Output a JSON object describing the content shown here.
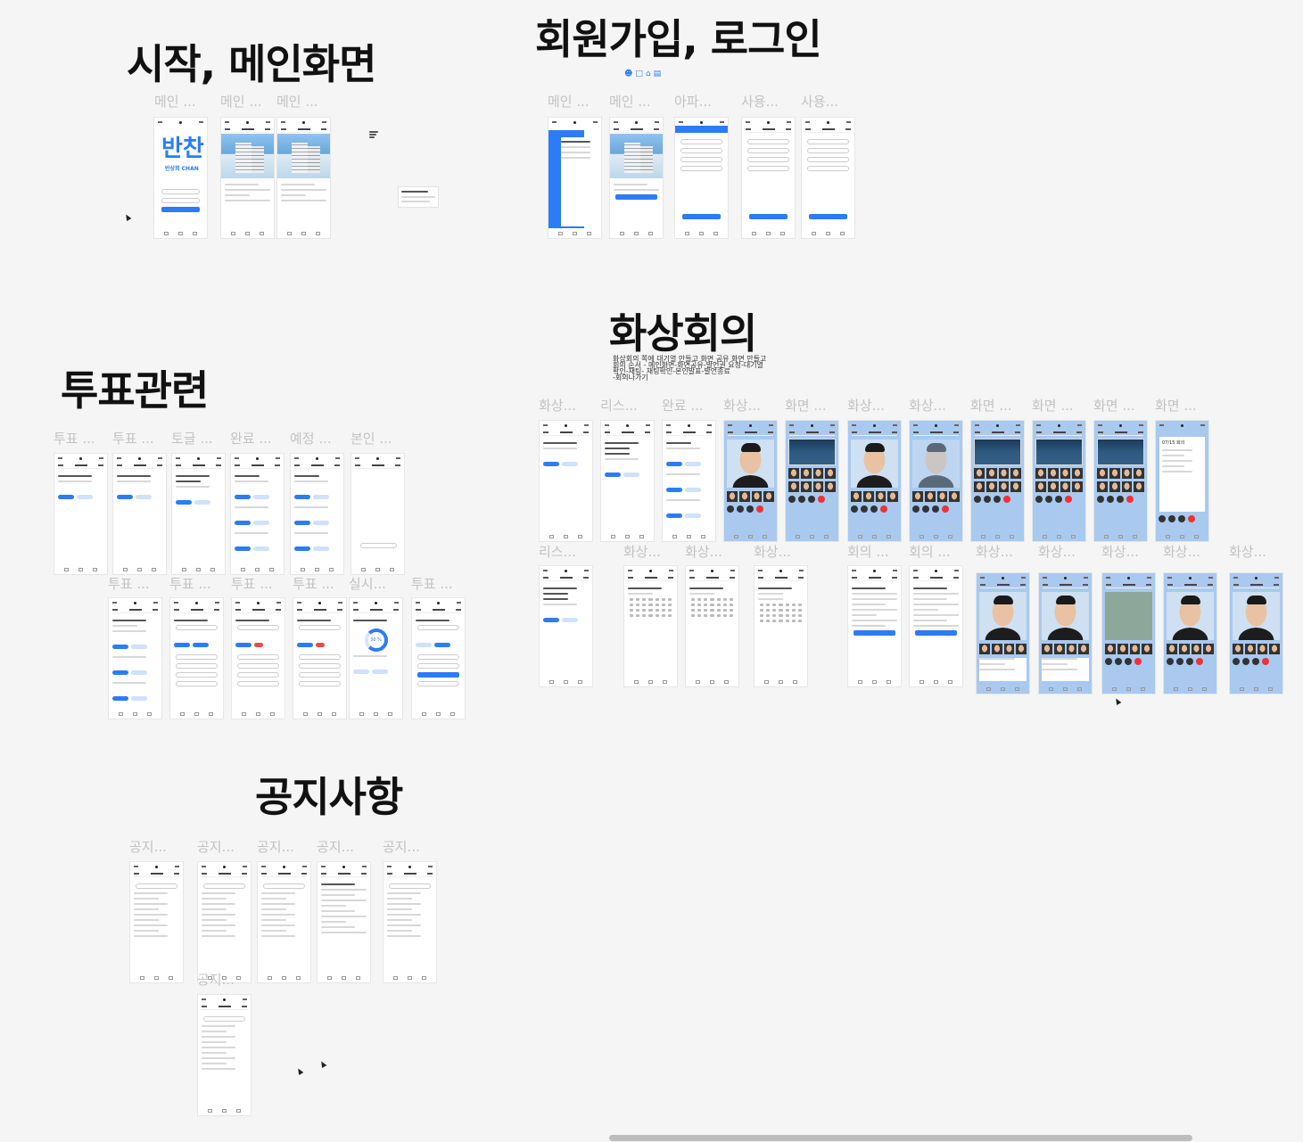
{
  "sections": {
    "start_main": "시작, 메인화면",
    "signup_login": "회원가입, 로그인",
    "video_conf": "화상회의",
    "vote": "투표관련",
    "notice": "공지사항"
  },
  "video_note": {
    "line1": "화상회의 쪽에 대기열 만들고 화면 공유 화면 만들고",
    "line2": "회의 순서 - 메인화면-화면공유-발언권 요청-대기열",
    "line3": "확인-채팅- 채팅확인-본인발표-발언종료",
    "line4": "-회의나가기"
  },
  "labels": {
    "start": [
      "메인 ...",
      "메인 ...",
      "메인 ..."
    ],
    "auth": [
      "메인 ...",
      "메인 ...",
      "아파...",
      "사용...",
      "사용..."
    ],
    "video_row1": [
      "화상...",
      "리스...",
      "완료 ...",
      "화상...",
      "화면 ...",
      "화상...",
      "화상...",
      "화면 ...",
      "화면 ...",
      "화면 ...",
      "화면 ..."
    ],
    "video_row2": [
      "리스...",
      "화상...",
      "화상...",
      "화상...",
      "회의 ...",
      "회의 ...",
      "화상...",
      "화상...",
      "화상...",
      "화상...",
      "화상..."
    ],
    "vote_row1": [
      "투표 ...",
      "투표 ...",
      "토글 ...",
      "완료 ...",
      "예정 ...",
      "본인 ..."
    ],
    "vote_row2": [
      "투표 ...",
      "투표 ...",
      "투표 ...",
      "투표 ...",
      "실시...",
      "투표 ..."
    ],
    "notice_row1": [
      "공지...",
      "공지...",
      "공지...",
      "공지...",
      "공지..."
    ],
    "notice_row2": [
      "공지..."
    ]
  },
  "app": {
    "logo_text": "반찬",
    "logo_sub": "반상회 CHAN",
    "logo_overlay": "반상회 CHAN",
    "meeting_date": "07/15 회의",
    "percent": "30 %"
  },
  "icons": [
    "person-icon",
    "chat-icon",
    "building-icon",
    "id-card-icon"
  ]
}
